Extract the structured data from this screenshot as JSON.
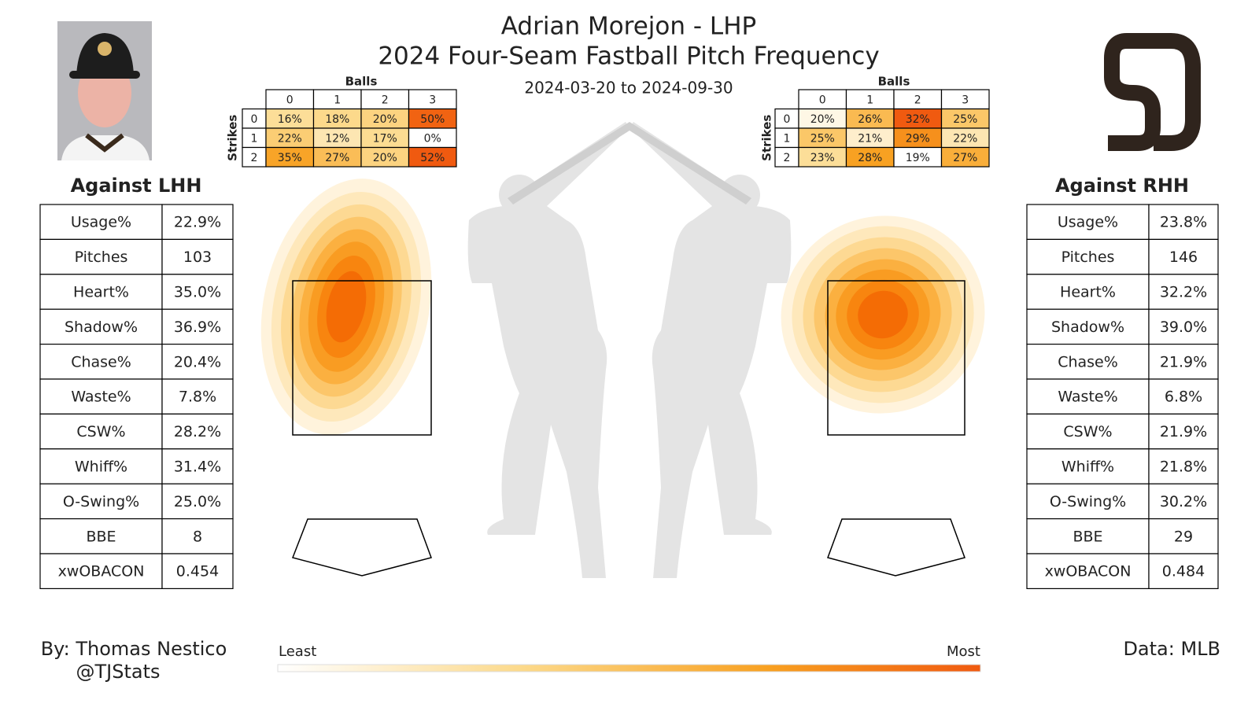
{
  "header": {
    "name": "Adrian Morejon - LHP",
    "title": "2024 Four-Seam Fastball Pitch Frequency",
    "dates": "2024-03-20 to 2024-09-30"
  },
  "count_tables": [
    {
      "balls_label": "Balls",
      "strikes_label": "Strikes",
      "balls": [
        0,
        1,
        2,
        3
      ],
      "strikes": [
        0,
        1,
        2
      ],
      "cells": [
        [
          "16%",
          "18%",
          "20%",
          "50%"
        ],
        [
          "22%",
          "12%",
          "17%",
          "0%"
        ],
        [
          "35%",
          "27%",
          "20%",
          "52%"
        ]
      ]
    },
    {
      "balls_label": "Balls",
      "strikes_label": "Strikes",
      "balls": [
        0,
        1,
        2,
        3
      ],
      "strikes": [
        0,
        1,
        2
      ],
      "cells": [
        [
          "20%",
          "26%",
          "32%",
          "25%"
        ],
        [
          "25%",
          "21%",
          "29%",
          "22%"
        ],
        [
          "23%",
          "28%",
          "19%",
          "27%"
        ]
      ]
    }
  ],
  "stat_tables": [
    {
      "title": "Against LHH",
      "rows": [
        [
          "Usage%",
          "22.9%"
        ],
        [
          "Pitches",
          "103"
        ],
        [
          "Heart%",
          "35.0%"
        ],
        [
          "Shadow%",
          "36.9%"
        ],
        [
          "Chase%",
          "20.4%"
        ],
        [
          "Waste%",
          "7.8%"
        ],
        [
          "CSW%",
          "28.2%"
        ],
        [
          "Whiff%",
          "31.4%"
        ],
        [
          "O-Swing%",
          "25.0%"
        ],
        [
          "BBE",
          "8"
        ],
        [
          "xwOBACON",
          "0.454"
        ]
      ]
    },
    {
      "title": "Against RHH",
      "rows": [
        [
          "Usage%",
          "23.8%"
        ],
        [
          "Pitches",
          "146"
        ],
        [
          "Heart%",
          "32.2%"
        ],
        [
          "Shadow%",
          "39.0%"
        ],
        [
          "Chase%",
          "21.9%"
        ],
        [
          "Waste%",
          "6.8%"
        ],
        [
          "CSW%",
          "21.9%"
        ],
        [
          "Whiff%",
          "21.8%"
        ],
        [
          "O-Swing%",
          "30.2%"
        ],
        [
          "BBE",
          "29"
        ],
        [
          "xwOBACON",
          "0.484"
        ]
      ]
    }
  ],
  "legend": {
    "low": "Least",
    "high": "Most"
  },
  "footer": {
    "author": "By: Thomas Nestico",
    "handle": "@TJStats",
    "source": "Data: MLB"
  }
}
